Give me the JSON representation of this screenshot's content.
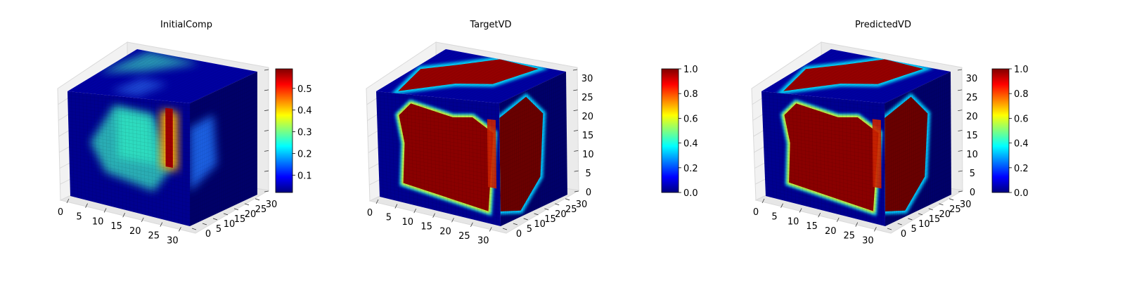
{
  "figure": {
    "colormap": "jet",
    "colormap_stops": [
      "#00007f",
      "#0000ff",
      "#007fff",
      "#00ffff",
      "#7fff7f",
      "#ffff00",
      "#ff7f00",
      "#ff0000",
      "#7f0000"
    ]
  },
  "chart_data": [
    {
      "type": "3d-voxel",
      "title": "InitialComp",
      "grid_size": 32,
      "axes": {
        "x": {
          "range": [
            0,
            32
          ],
          "ticks": [
            "0",
            "5",
            "10",
            "15",
            "20",
            "25",
            "30"
          ]
        },
        "y": {
          "range": [
            0,
            32
          ],
          "ticks": [
            "0",
            "5",
            "10",
            "15",
            "20",
            "25",
            "30"
          ]
        },
        "z": {
          "range": [
            0,
            32
          ],
          "ticks": []
        }
      },
      "colorbar": {
        "range": [
          0.02,
          0.59
        ],
        "ticks": [
          "0.1",
          "0.2",
          "0.3",
          "0.4",
          "0.5"
        ],
        "tick_values": [
          0.1,
          0.2,
          0.3,
          0.4,
          0.5
        ]
      }
    },
    {
      "type": "3d-voxel",
      "title": "TargetVD",
      "grid_size": 32,
      "axes": {
        "x": {
          "range": [
            0,
            32
          ],
          "ticks": [
            "0",
            "5",
            "10",
            "15",
            "20",
            "25",
            "30"
          ]
        },
        "y": {
          "range": [
            0,
            32
          ],
          "ticks": [
            "0",
            "5",
            "10",
            "15",
            "20",
            "25",
            "30"
          ]
        },
        "z": {
          "range": [
            0,
            32
          ],
          "ticks": [
            "0",
            "5",
            "10",
            "15",
            "20",
            "25",
            "30"
          ]
        }
      },
      "colorbar": {
        "range": [
          0.0,
          1.0
        ],
        "ticks": [
          "0.0",
          "0.2",
          "0.4",
          "0.6",
          "0.8",
          "1.0"
        ],
        "tick_values": [
          0.0,
          0.2,
          0.4,
          0.6,
          0.8,
          1.0
        ]
      }
    },
    {
      "type": "3d-voxel",
      "title": "PredictedVD",
      "grid_size": 32,
      "axes": {
        "x": {
          "range": [
            0,
            32
          ],
          "ticks": [
            "0",
            "5",
            "10",
            "15",
            "20",
            "25",
            "30"
          ]
        },
        "y": {
          "range": [
            0,
            32
          ],
          "ticks": [
            "0",
            "5",
            "10",
            "15",
            "20",
            "25",
            "30"
          ]
        },
        "z": {
          "range": [
            0,
            32
          ],
          "ticks": [
            "0",
            "5",
            "10",
            "15",
            "20",
            "25",
            "30"
          ]
        }
      },
      "colorbar": {
        "range": [
          0.0,
          1.0
        ],
        "ticks": [
          "0.0",
          "0.2",
          "0.4",
          "0.6",
          "0.8",
          "1.0"
        ],
        "tick_values": [
          0.0,
          0.2,
          0.4,
          0.6,
          0.8,
          1.0
        ]
      }
    }
  ]
}
